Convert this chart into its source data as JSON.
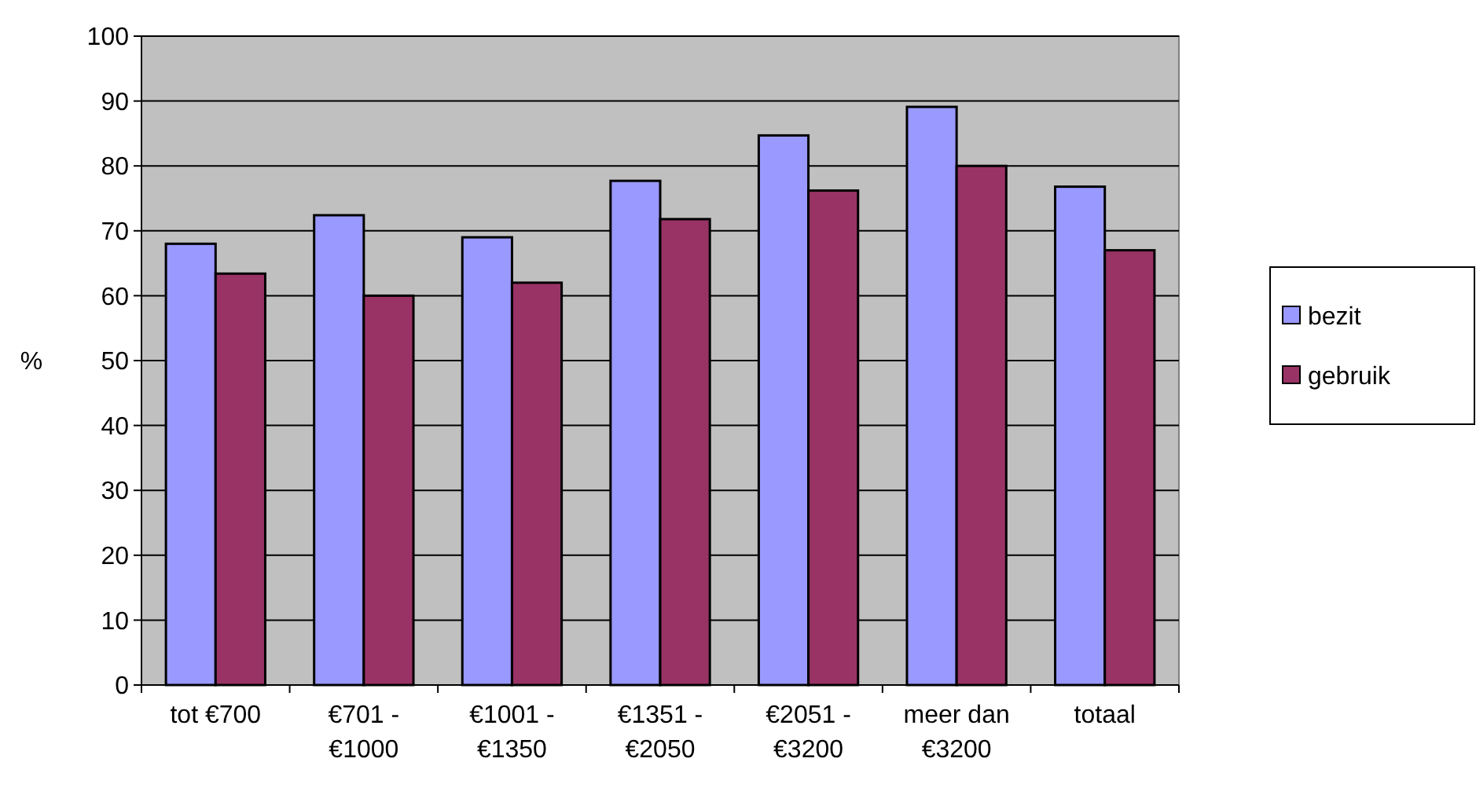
{
  "chart_data": {
    "type": "bar",
    "ylabel": "%",
    "categories": [
      "tot €700",
      "€701 -\n€1000",
      "€1001 -\n€1350",
      "€1351 -\n€2050",
      "€2051 -\n€3200",
      "meer dan\n€3200",
      "totaal"
    ],
    "series": [
      {
        "name": "bezit",
        "color": "#9999ff",
        "values": [
          68,
          72.4,
          69,
          77.7,
          84.7,
          89.1,
          76.8
        ]
      },
      {
        "name": "gebruik",
        "color": "#993366",
        "values": [
          63.4,
          60,
          62,
          71.8,
          76.2,
          80,
          67
        ]
      }
    ],
    "ylim": [
      0,
      100
    ],
    "yticks": [
      0,
      10,
      20,
      30,
      40,
      50,
      60,
      70,
      80,
      90,
      100
    ],
    "grid": "y",
    "legend": "right"
  }
}
